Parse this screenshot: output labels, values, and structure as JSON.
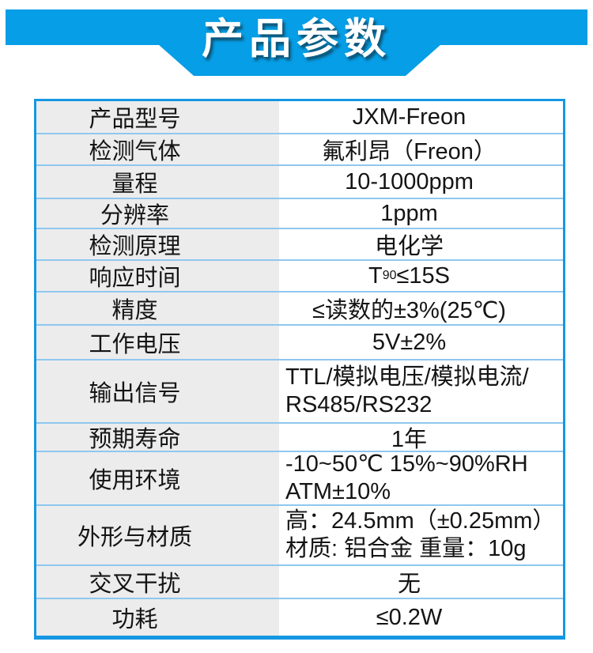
{
  "banner": {
    "title": "产品参数"
  },
  "colors": {
    "bar_blue": "#069ee6",
    "border_blue": "#1697e3",
    "separator_blue": "#8fc7ef",
    "label_bg": "#ececec",
    "title_text": "#ffffff",
    "body_text": "#141414"
  },
  "table": {
    "rows": [
      {
        "label": "产品型号",
        "value": "JXM-Freon"
      },
      {
        "label": "检测气体",
        "value": "氟利昂（Freon）"
      },
      {
        "label": "量程",
        "value": "10-1000ppm"
      },
      {
        "label": "分辨率",
        "value": "1ppm"
      },
      {
        "label": "检测原理",
        "value": "电化学"
      },
      {
        "label": "响应时间",
        "value_parts": {
          "prefix": "T",
          "sub": "90",
          "suffix": "≤15S"
        }
      },
      {
        "label": "精度",
        "value": "≤读数的±3%(25℃)"
      },
      {
        "label": "工作电压",
        "value": "5V±2%"
      },
      {
        "label": "输出信号",
        "lines": [
          "TTL/模拟电压/模拟电流/",
          "RS485/RS232"
        ]
      },
      {
        "label": "预期寿命",
        "value": "1年"
      },
      {
        "label": "使用环境",
        "lines": [
          "-10~50℃ 15%~90%RH",
          "ATM±10%"
        ]
      },
      {
        "label": "外形与材质",
        "lines": [
          "高：24.5mm（±0.25mm）",
          "材质: 铝合金 重量：10g"
        ]
      },
      {
        "label": "交叉干扰",
        "value": "无"
      },
      {
        "label": "功耗",
        "value": "≤0.2W"
      }
    ]
  }
}
